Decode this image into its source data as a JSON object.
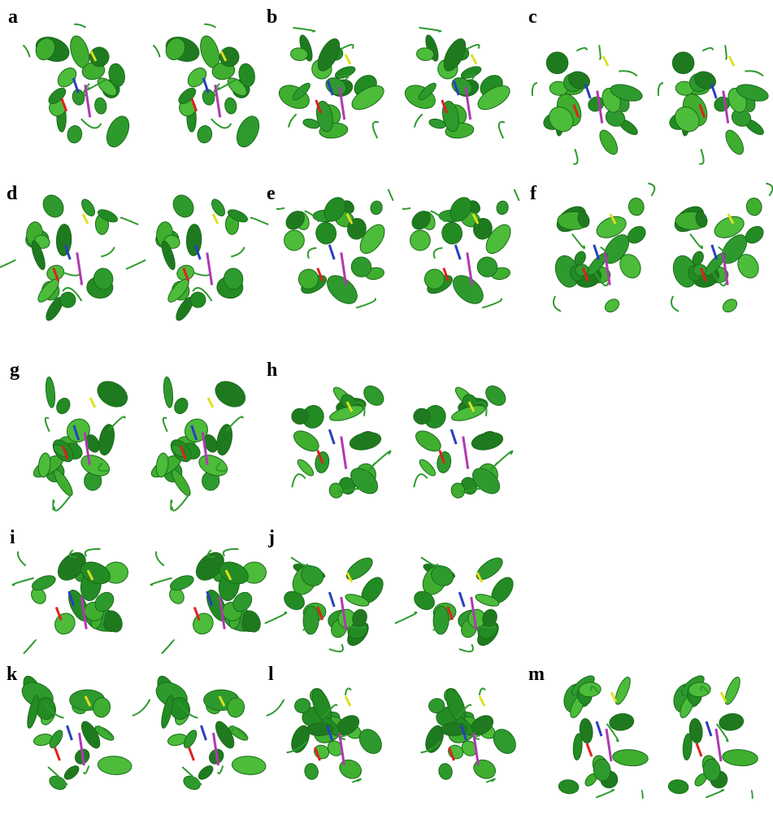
{
  "panels": [
    {
      "label": "a"
    },
    {
      "label": "b"
    },
    {
      "label": "c"
    },
    {
      "label": "d"
    },
    {
      "label": "e"
    },
    {
      "label": "f"
    },
    {
      "label": "g"
    },
    {
      "label": "h"
    },
    {
      "label": "i"
    },
    {
      "label": "j"
    },
    {
      "label": "k"
    },
    {
      "label": "l"
    },
    {
      "label": "m"
    }
  ]
}
